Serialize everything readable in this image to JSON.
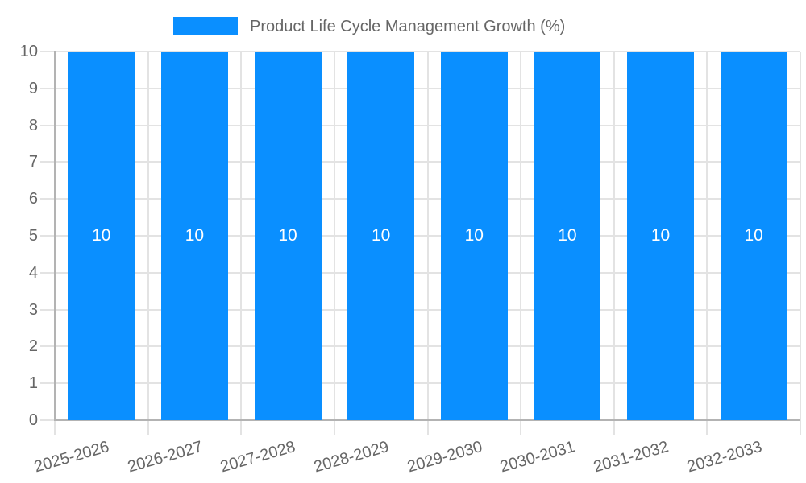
{
  "chart_data": {
    "type": "bar",
    "title": "Product Life Cycle Management Growth (%)",
    "categories": [
      "2025-2026",
      "2026-2027",
      "2027-2028",
      "2028-2029",
      "2029-2030",
      "2030-2031",
      "2031-2032",
      "2032-2033"
    ],
    "values": [
      10,
      10,
      10,
      10,
      10,
      10,
      10,
      10
    ],
    "value_labels": [
      "10",
      "10",
      "10",
      "10",
      "10",
      "10",
      "10",
      "10"
    ],
    "xlabel": "",
    "ylabel": "",
    "ylim": [
      0,
      10
    ],
    "ytick_step": 1,
    "ytick_labels": [
      "0",
      "1",
      "2",
      "3",
      "4",
      "5",
      "6",
      "7",
      "8",
      "9",
      "10"
    ],
    "grid": true,
    "legend_position": "top"
  },
  "colors": {
    "bar": "#0a8fff",
    "grid": "#e3e3e3",
    "axis_border": "#b3b3b3",
    "tick_text": "#666666",
    "legend_text": "#666666",
    "value_label": "#ffffff",
    "background": "#ffffff"
  }
}
